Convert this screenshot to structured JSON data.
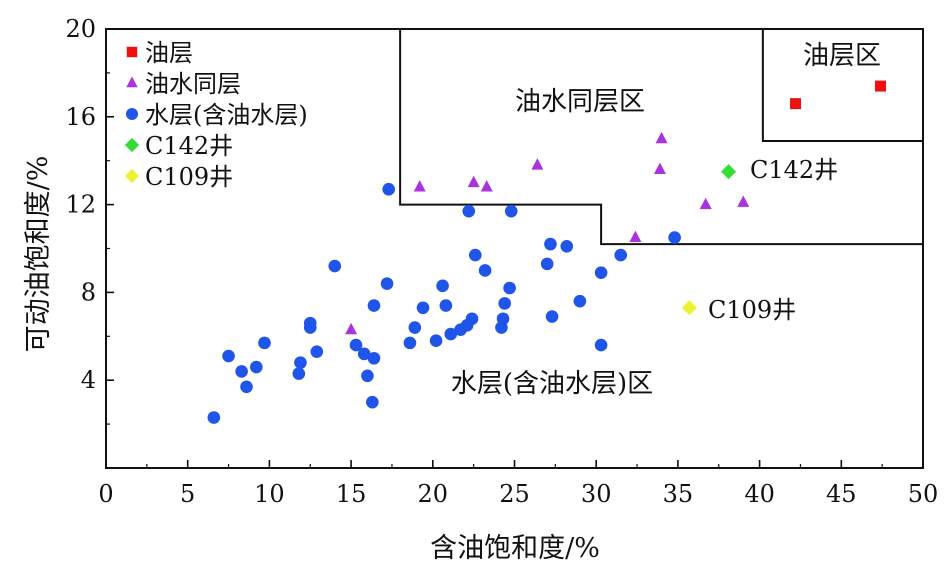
{
  "chart_data": {
    "type": "scatter",
    "xlabel": "含油饱和度/%",
    "ylabel": "可动油饱和度/%",
    "xlim": [
      0,
      50
    ],
    "ylim": [
      0,
      20
    ],
    "x_ticks": [
      0,
      5,
      10,
      15,
      20,
      25,
      30,
      35,
      40,
      45,
      50
    ],
    "y_ticks": [
      4,
      8,
      12,
      16,
      20
    ],
    "grid": false,
    "legend_position": "top-left",
    "series": [
      {
        "name": "油层",
        "marker": "square",
        "color": "#ee1111",
        "points": [
          [
            42.2,
            16.6
          ],
          [
            47.4,
            17.4
          ]
        ]
      },
      {
        "name": "油水同层",
        "marker": "triangle",
        "color": "#aa33dd",
        "points": [
          [
            15.0,
            6.3
          ],
          [
            19.2,
            12.8
          ],
          [
            22.5,
            13.0
          ],
          [
            23.3,
            12.8
          ],
          [
            26.4,
            13.8
          ],
          [
            32.4,
            10.5
          ],
          [
            33.9,
            13.6
          ],
          [
            34.0,
            15.0
          ],
          [
            36.7,
            12.0
          ],
          [
            39.0,
            12.1
          ]
        ]
      },
      {
        "name": "水层(含油水层)",
        "marker": "circle",
        "color": "#1f55e8",
        "points": [
          [
            6.6,
            2.3
          ],
          [
            7.5,
            5.1
          ],
          [
            8.3,
            4.4
          ],
          [
            8.6,
            3.7
          ],
          [
            9.2,
            4.6
          ],
          [
            9.7,
            5.7
          ],
          [
            11.8,
            4.3
          ],
          [
            11.9,
            4.8
          ],
          [
            12.5,
            6.6
          ],
          [
            12.5,
            6.4
          ],
          [
            12.9,
            5.3
          ],
          [
            14.0,
            9.2
          ],
          [
            15.3,
            5.6
          ],
          [
            15.8,
            5.2
          ],
          [
            16.0,
            4.2
          ],
          [
            16.3,
            3.0
          ],
          [
            16.4,
            5.0
          ],
          [
            16.4,
            7.4
          ],
          [
            17.2,
            8.4
          ],
          [
            17.3,
            12.7
          ],
          [
            18.6,
            5.7
          ],
          [
            18.9,
            6.4
          ],
          [
            19.4,
            7.3
          ],
          [
            20.2,
            5.8
          ],
          [
            20.6,
            8.3
          ],
          [
            20.8,
            7.4
          ],
          [
            21.1,
            6.1
          ],
          [
            21.7,
            6.3
          ],
          [
            22.1,
            6.5
          ],
          [
            22.2,
            11.7
          ],
          [
            22.4,
            6.8
          ],
          [
            22.6,
            9.7
          ],
          [
            23.2,
            9.0
          ],
          [
            24.2,
            6.4
          ],
          [
            24.3,
            6.8
          ],
          [
            24.4,
            7.5
          ],
          [
            24.7,
            8.2
          ],
          [
            24.8,
            11.7
          ],
          [
            27.0,
            9.3
          ],
          [
            27.2,
            10.2
          ],
          [
            27.3,
            6.9
          ],
          [
            28.2,
            10.1
          ],
          [
            29.0,
            7.6
          ],
          [
            30.3,
            5.6
          ],
          [
            30.3,
            8.9
          ],
          [
            31.5,
            9.7
          ],
          [
            34.8,
            10.5
          ]
        ]
      },
      {
        "name": "C142井",
        "marker": "diamond",
        "color": "#33dd33",
        "points": [
          [
            38.1,
            13.5
          ]
        ]
      },
      {
        "name": "C109井",
        "marker": "diamond",
        "color": "#eef033",
        "points": [
          [
            35.7,
            7.3
          ]
        ]
      }
    ],
    "annotations": {
      "oil_zone": "油层区",
      "oil_water_zone": "油水同层区",
      "water_zone": "水层(含油水层)区",
      "c142_label": "C142井",
      "c109_label": "C109井"
    },
    "boundaries": {
      "oil_water_zone_outline": [
        [
          18,
          20
        ],
        [
          18,
          12
        ],
        [
          30.3,
          12
        ],
        [
          30.3,
          10.2
        ],
        [
          50,
          10.2
        ]
      ],
      "oil_zone_outline": [
        [
          40.2,
          20
        ],
        [
          40.2,
          14.9
        ],
        [
          50,
          14.9
        ]
      ]
    }
  }
}
